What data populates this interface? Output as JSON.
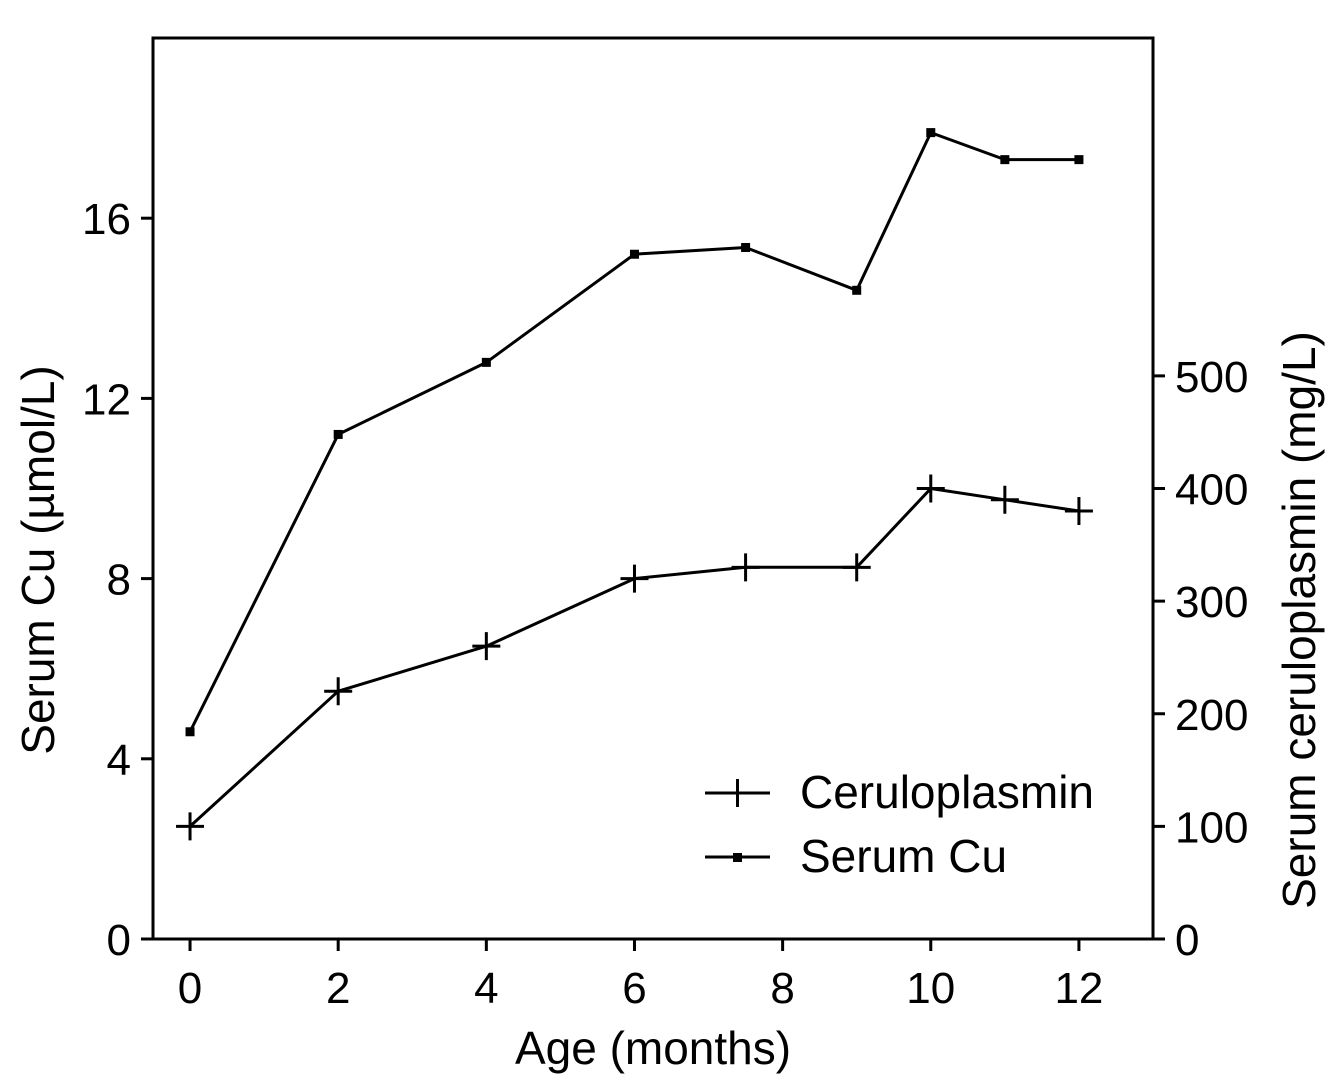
{
  "chart_data": {
    "type": "line",
    "xlabel": "Age (months)",
    "ylabel_left": "Serum Cu (µmol/L)",
    "ylabel_right": "Serum ceruloplasmin (mg/L)",
    "xlim": [
      -0.5,
      13
    ],
    "x_ticks": [
      0,
      2,
      4,
      6,
      8,
      10,
      12
    ],
    "ylim_left": [
      0,
      20
    ],
    "y_ticks_left": [
      0,
      4,
      8,
      12,
      16
    ],
    "ylim_right": [
      0,
      800
    ],
    "y_ticks_right": [
      0,
      100,
      200,
      300,
      400,
      500
    ],
    "legend_position": "bottom-right",
    "series": [
      {
        "name": "Ceruloplasmin",
        "axis": "right",
        "marker": "plus",
        "x": [
          0,
          2,
          4,
          6,
          7.5,
          9,
          10,
          11,
          12
        ],
        "y": [
          100,
          220,
          260,
          320,
          330,
          330,
          400,
          390,
          380
        ]
      },
      {
        "name": "Serum Cu",
        "axis": "left",
        "marker": "square",
        "x": [
          0,
          2,
          4,
          6,
          7.5,
          9,
          10,
          11,
          12
        ],
        "y": [
          4.6,
          11.2,
          12.8,
          15.2,
          15.35,
          14.4,
          17.9,
          17.3,
          17.3
        ]
      }
    ]
  }
}
